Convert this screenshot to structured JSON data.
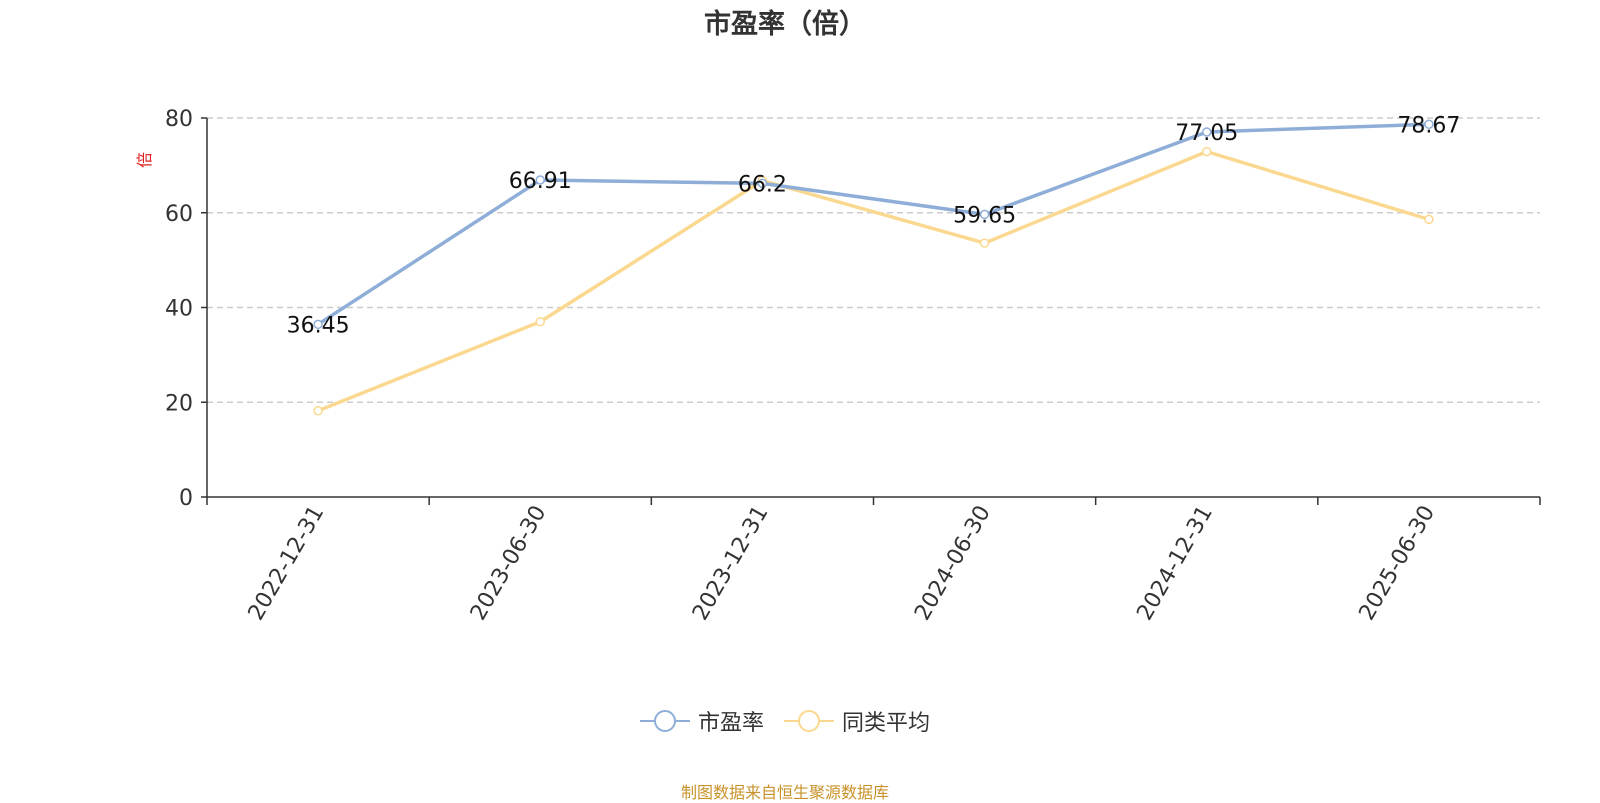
{
  "chart_data": {
    "type": "line",
    "title": "市盈率（倍）",
    "ylabel": "倍",
    "xlabel": "",
    "categories": [
      "2022-12-31",
      "2023-06-30",
      "2023-12-31",
      "2024-06-30",
      "2024-12-31",
      "2025-06-30"
    ],
    "ylim": [
      0,
      80
    ],
    "yticks": [
      0,
      20,
      40,
      60,
      80
    ],
    "grid": true,
    "legend_position": "bottom",
    "series": [
      {
        "name": "市盈率",
        "values": [
          36.45,
          66.91,
          66.2,
          59.65,
          77.05,
          78.67
        ],
        "color": "#8eaed8",
        "show_labels": true
      },
      {
        "name": "同类平均",
        "values": [
          18.2,
          37.0,
          66.8,
          53.6,
          72.9,
          58.6
        ],
        "color": "#fbd890",
        "show_labels": false
      }
    ]
  },
  "source_note": "制图数据来自恒生聚源数据库",
  "colors": {
    "ylabel": "#e02020",
    "axis": "#333333",
    "grid": "#cccccc",
    "source": "#c8922a"
  }
}
